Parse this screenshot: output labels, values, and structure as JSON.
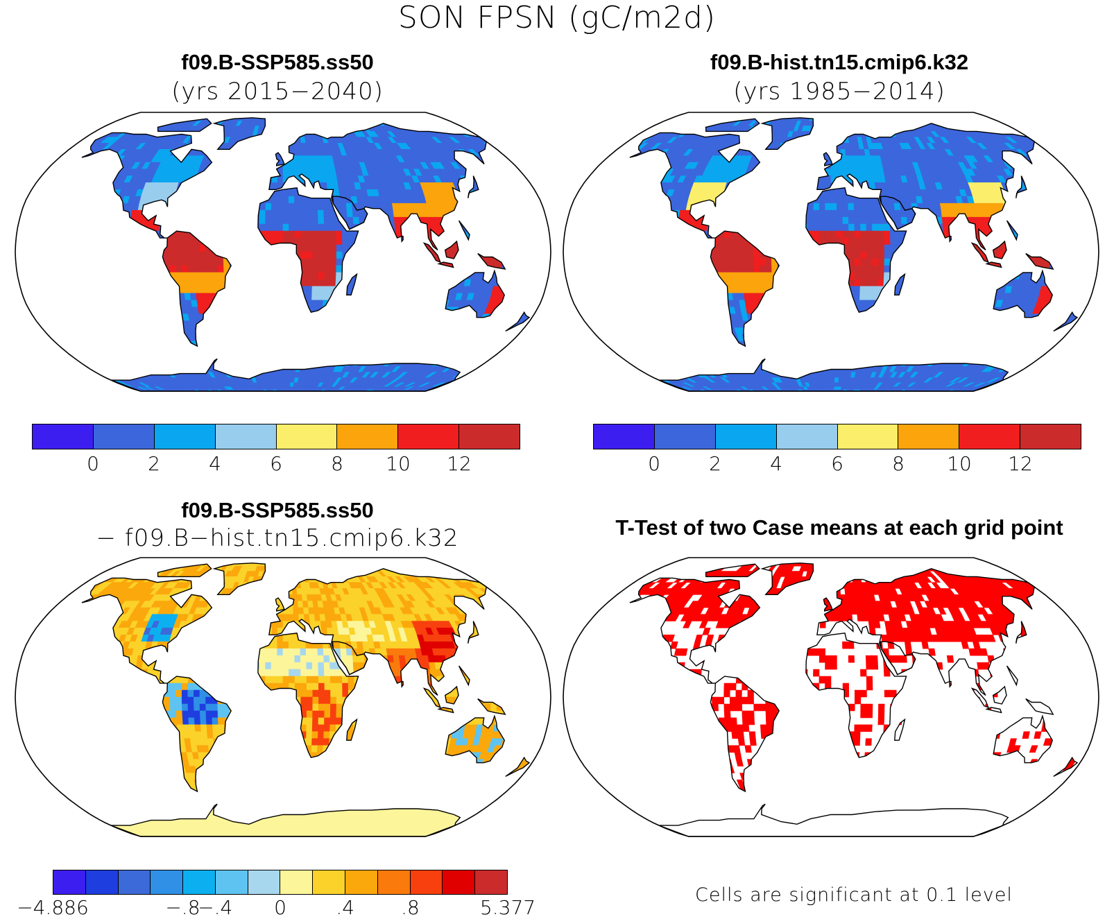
{
  "figure_title": "SON FPSN (gC/m2d)",
  "panels": [
    {
      "title": "f09.B-SSP585.ss50",
      "subtitle": "(yrs 2015−2040)"
    },
    {
      "title": "f09.B-hist.tn15.cmip6.k32",
      "subtitle": "(yrs 1985−2014)"
    },
    {
      "title": "f09.B-SSP585.ss50",
      "subtitle": "− f09.B−hist.tn15.cmip6.k32"
    },
    {
      "title": "T-Test of two Case means at each grid point",
      "subtitle": ""
    }
  ],
  "colorbar_abs": {
    "colors": [
      "#3d1ef0",
      "#3c66dc",
      "#0ba6f0",
      "#99cdee",
      "#fbee6a",
      "#fba40c",
      "#f01e1e",
      "#cc2b2b"
    ],
    "ticks": [
      "0",
      "2",
      "4",
      "6",
      "8",
      "10",
      "12"
    ]
  },
  "colorbar_diff": {
    "colors": [
      "#3d1ef0",
      "#1f3ee0",
      "#3c6ad8",
      "#2f90e6",
      "#0cb0f0",
      "#5ec3f0",
      "#a6d7ee",
      "#fcf59a",
      "#fad22a",
      "#fba80c",
      "#fa7a0c",
      "#f8400e",
      "#e00000",
      "#cc2b2b"
    ],
    "ticks": [
      "−4.886",
      "−.8",
      "−.4",
      "0",
      ".4",
      ".8",
      "5.377"
    ]
  },
  "significance_note": "Cells are significant at 0.1 level",
  "map_colors": {
    "ocean": "#ffffff",
    "outline": "#000000",
    "significant": "#ff0000"
  }
}
